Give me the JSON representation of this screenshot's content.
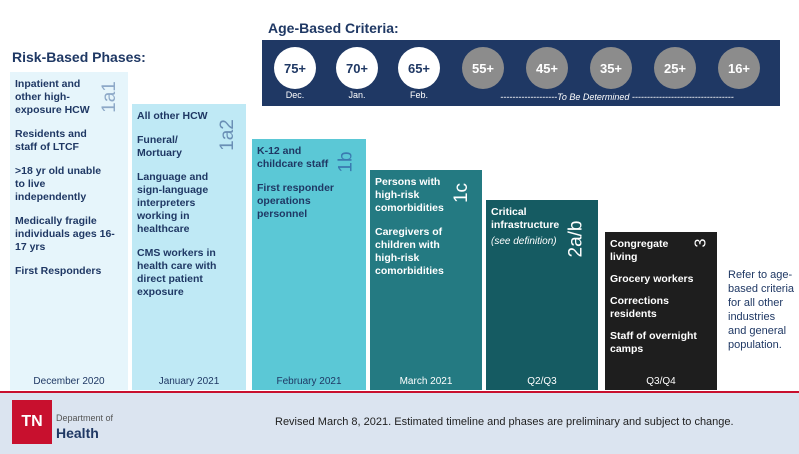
{
  "age_title": "Age-Based Criteria:",
  "risk_title": "Risk-Based Phases:",
  "age_circles": [
    {
      "value": "75+",
      "label": "Dec."
    },
    {
      "value": "70+",
      "label": "Jan."
    },
    {
      "value": "65+",
      "label": "Feb."
    },
    {
      "value": "55+",
      "label": ""
    },
    {
      "value": "45+",
      "label": ""
    },
    {
      "value": "35+",
      "label": ""
    },
    {
      "value": "25+",
      "label": ""
    },
    {
      "value": "16+",
      "label": ""
    }
  ],
  "tbd_label": "-------------------To Be Determined ----------------------------------",
  "phases": [
    {
      "code": "1a1",
      "month": "December 2020",
      "items": [
        "Inpatient and other high-exposure HCW",
        "Residents and staff of LTCF",
        ">18 yr old unable to live independently",
        "Medically fragile individuals ages 16-17 yrs",
        "First Responders"
      ]
    },
    {
      "code": "1a2",
      "month": "January 2021",
      "items": [
        "All other HCW",
        "Funeral/ Mortuary",
        "Language and sign-language interpreters working in healthcare",
        "CMS  workers in health care with direct patient exposure"
      ]
    },
    {
      "code": "1b",
      "month": "February 2021",
      "items": [
        "K-12 and childcare staff",
        "First responder operations personnel"
      ]
    },
    {
      "code": "1c",
      "month": "March 2021",
      "items": [
        "Persons with high-risk comorbidities",
        "Caregivers of children with high-risk comorbidities"
      ]
    },
    {
      "code": "2a/b",
      "month": "Q2/Q3",
      "items": [
        "Critical infrastructure",
        "(see definition)"
      ]
    },
    {
      "code": "3",
      "month": "Q3/Q4",
      "items": [
        "Congregate living",
        "Grocery workers",
        "Corrections residents",
        "Staff of overnight camps"
      ]
    }
  ],
  "other_note": "Refer to age-based criteria for all other industries and general population.",
  "footer_note": "Revised March 8, 2021.  Estimated timeline and phases are preliminary and subject to change.",
  "logo": {
    "abbr": "TN",
    "dept": "Department of",
    "name": "Health"
  }
}
